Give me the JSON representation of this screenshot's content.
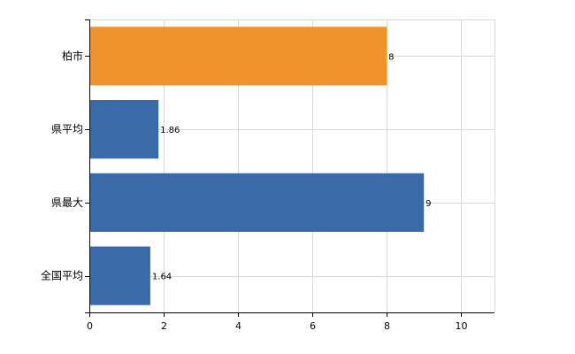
{
  "chart_data": {
    "type": "bar",
    "orientation": "horizontal",
    "categories": [
      "柏市",
      "県平均",
      "県最大",
      "全国平均"
    ],
    "values": [
      8,
      1.86,
      9,
      1.64
    ],
    "data_labels": [
      "8",
      "1.86",
      "9",
      "1.64"
    ],
    "bar_colors": [
      "#f0922b",
      "#3a6aa8",
      "#3a6aa8",
      "#3a6aa8"
    ],
    "xlim": [
      0,
      10.9
    ],
    "x_ticks": [
      0,
      2,
      4,
      6,
      8,
      10
    ],
    "x_tick_labels": [
      "0",
      "2",
      "4",
      "6",
      "8",
      "10"
    ],
    "grid": true,
    "title": "",
    "xlabel": "",
    "ylabel": ""
  }
}
